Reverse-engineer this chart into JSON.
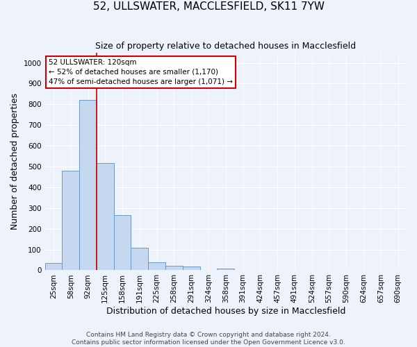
{
  "title": "52, ULLSWATER, MACCLESFIELD, SK11 7YW",
  "subtitle": "Size of property relative to detached houses in Macclesfield",
  "xlabel": "Distribution of detached houses by size in Macclesfield",
  "ylabel": "Number of detached properties",
  "bar_labels": [
    "25sqm",
    "58sqm",
    "92sqm",
    "125sqm",
    "158sqm",
    "191sqm",
    "225sqm",
    "258sqm",
    "291sqm",
    "324sqm",
    "358sqm",
    "391sqm",
    "424sqm",
    "457sqm",
    "491sqm",
    "524sqm",
    "557sqm",
    "590sqm",
    "624sqm",
    "657sqm",
    "690sqm"
  ],
  "bar_values": [
    35,
    480,
    820,
    515,
    265,
    110,
    40,
    20,
    18,
    0,
    8,
    0,
    0,
    0,
    0,
    0,
    0,
    0,
    0,
    0,
    0
  ],
  "bar_color": "#c5d8f0",
  "bar_edge_color": "#6699cc",
  "property_line_x": 3,
  "property_line_label": "52 ULLSWATER: 120sqm",
  "annotation_line1": "← 52% of detached houses are smaller (1,170)",
  "annotation_line2": "47% of semi-detached houses are larger (1,071) →",
  "annotation_box_color": "#ffffff",
  "annotation_box_edge_color": "#cc0000",
  "vline_color": "#cc0000",
  "ylim": [
    0,
    1050
  ],
  "yticks": [
    0,
    100,
    200,
    300,
    400,
    500,
    600,
    700,
    800,
    900,
    1000
  ],
  "footer_line1": "Contains HM Land Registry data © Crown copyright and database right 2024.",
  "footer_line2": "Contains public sector information licensed under the Open Government Licence v3.0.",
  "background_color": "#eef2fa",
  "grid_color": "#ffffff",
  "title_fontsize": 11,
  "subtitle_fontsize": 9,
  "axis_label_fontsize": 9,
  "tick_fontsize": 7.5,
  "annotation_fontsize": 7.5,
  "footer_fontsize": 6.5
}
